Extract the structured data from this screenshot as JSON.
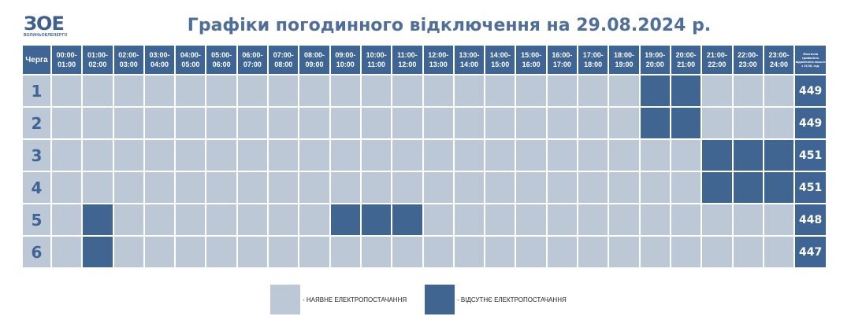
{
  "header": {
    "logo_mark": "ЗОЕ",
    "logo_sub": "ВОЛИНЬОБЛЕНЕРГО",
    "title": "Графіки погодинного відключення на 29.08.2024 р."
  },
  "table": {
    "queue_header": "Черга",
    "total_header": "Фактична тривалість відключень всього з 16.08, год.",
    "slots": [
      [
        "00:00-",
        "01:00"
      ],
      [
        "01:00-",
        "02:00"
      ],
      [
        "02:00-",
        "03:00"
      ],
      [
        "03:00-",
        "04:00"
      ],
      [
        "04:00-",
        "05:00"
      ],
      [
        "05:00-",
        "06:00"
      ],
      [
        "06:00-",
        "07:00"
      ],
      [
        "07:00-",
        "08:00"
      ],
      [
        "08:00-",
        "09:00"
      ],
      [
        "09:00-",
        "10:00"
      ],
      [
        "10:00-",
        "11:00"
      ],
      [
        "11:00-",
        "12:00"
      ],
      [
        "12:00-",
        "13:00"
      ],
      [
        "13:00-",
        "14:00"
      ],
      [
        "14:00-",
        "15:00"
      ],
      [
        "15:00-",
        "16:00"
      ],
      [
        "16:00-",
        "17:00"
      ],
      [
        "17:00-",
        "18:00"
      ],
      [
        "18:00-",
        "19:00"
      ],
      [
        "19:00-",
        "20:00"
      ],
      [
        "20:00-",
        "21:00"
      ],
      [
        "21:00-",
        "22:00"
      ],
      [
        "22:00-",
        "23:00"
      ],
      [
        "23:00-",
        "24:00"
      ]
    ],
    "rows": [
      {
        "queue": "1",
        "total": "449",
        "off_slots": [
          19,
          20
        ]
      },
      {
        "queue": "2",
        "total": "449",
        "off_slots": [
          19,
          20
        ]
      },
      {
        "queue": "3",
        "total": "451",
        "off_slots": [
          21,
          22,
          23
        ]
      },
      {
        "queue": "4",
        "total": "451",
        "off_slots": [
          21,
          22,
          23
        ]
      },
      {
        "queue": "5",
        "total": "448",
        "off_slots": [
          1,
          9,
          10,
          11
        ]
      },
      {
        "queue": "6",
        "total": "447",
        "off_slots": [
          1
        ]
      }
    ]
  },
  "legend": {
    "on_label": "- НАЯВНЕ ЕЛЕКТРОПОСТАЧАННЯ",
    "off_label": "- ВІДСУТНЄ ЕЛЕКТРОПОСТАЧАННЯ",
    "on_color": "#bcc8d6",
    "off_color": "#406591"
  }
}
